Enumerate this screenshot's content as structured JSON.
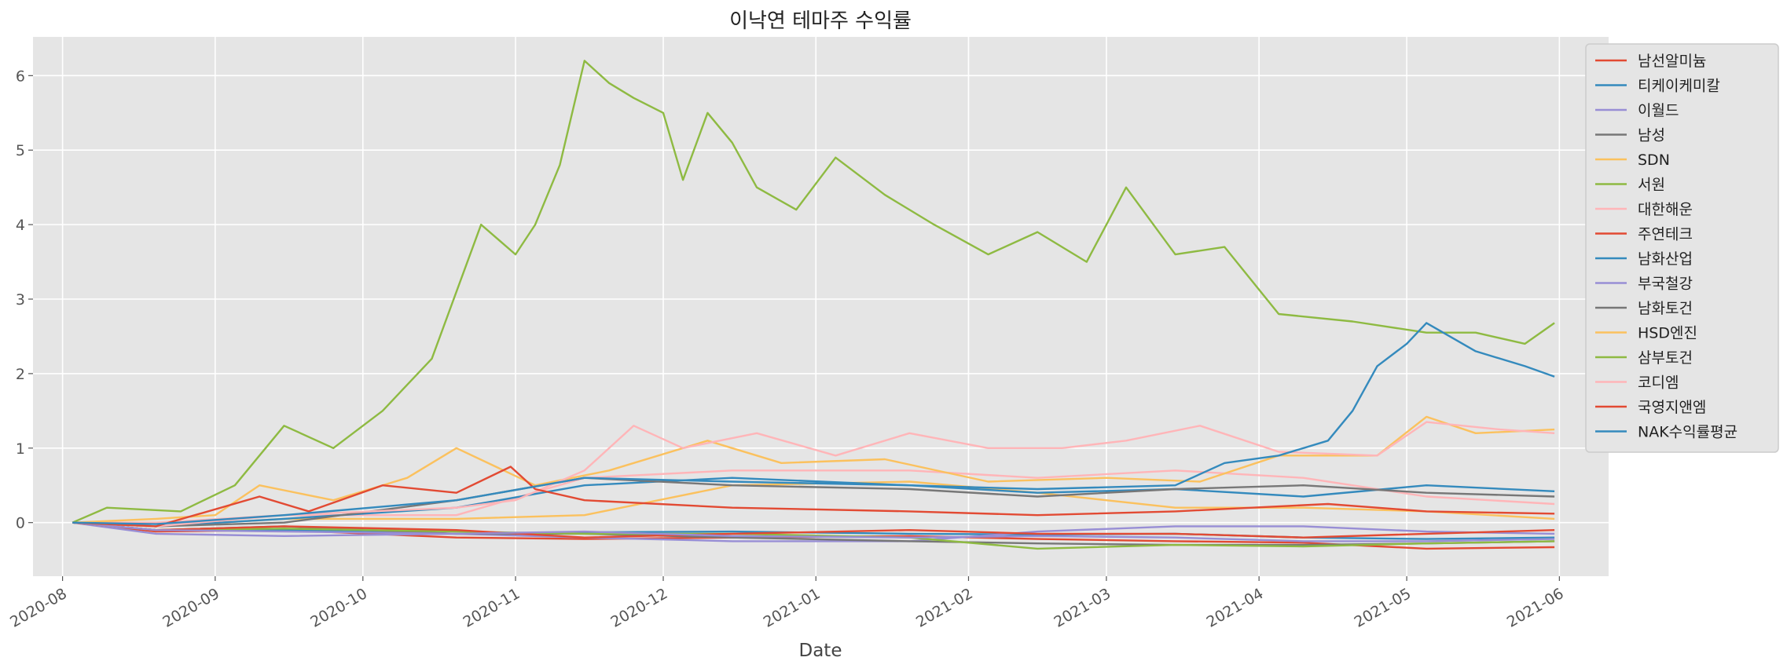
{
  "chart_data": {
    "type": "line",
    "title": "이낙연 테마주 수익률",
    "xlabel": "Date",
    "ylabel": "",
    "x_type": "date",
    "xlim": [
      "2020-07-26",
      "2021-06-11"
    ],
    "ylim": [
      -0.72,
      6.52
    ],
    "grid": true,
    "legend_position": "upper right, outside plot",
    "x_ticks": [
      {
        "date": "2020-08-01",
        "label": "2020-08"
      },
      {
        "date": "2020-09-01",
        "label": "2020-09"
      },
      {
        "date": "2020-10-01",
        "label": "2020-10"
      },
      {
        "date": "2020-11-01",
        "label": "2020-11"
      },
      {
        "date": "2020-12-01",
        "label": "2020-12"
      },
      {
        "date": "2021-01-01",
        "label": "2021-01"
      },
      {
        "date": "2021-02-01",
        "label": "2021-02"
      },
      {
        "date": "2021-03-01",
        "label": "2021-03"
      },
      {
        "date": "2021-04-01",
        "label": "2021-04"
      },
      {
        "date": "2021-05-01",
        "label": "2021-05"
      },
      {
        "date": "2021-06-01",
        "label": "2021-06"
      }
    ],
    "y_ticks": [
      0,
      1,
      2,
      3,
      4,
      5,
      6
    ],
    "series": [
      {
        "name": "남선알미늄",
        "color": "#E24A33",
        "x": [
          "2020-08-03",
          "2020-08-20",
          "2020-09-15",
          "2020-10-20",
          "2020-11-15",
          "2020-12-15",
          "2021-01-20",
          "2021-02-15",
          "2021-03-15",
          "2021-04-10",
          "2021-05-05",
          "2021-05-31"
        ],
        "y": [
          0,
          -0.12,
          -0.1,
          -0.2,
          -0.22,
          -0.2,
          -0.18,
          -0.22,
          -0.25,
          -0.27,
          -0.35,
          -0.33
        ]
      },
      {
        "name": "티케이케미칼",
        "color": "#348ABD",
        "x": [
          "2020-08-03",
          "2020-08-20",
          "2020-09-15",
          "2020-10-20",
          "2020-11-15",
          "2020-12-15",
          "2021-01-20",
          "2021-02-15",
          "2021-03-15",
          "2021-04-10",
          "2021-05-05",
          "2021-05-31"
        ],
        "y": [
          0,
          -0.1,
          -0.1,
          -0.15,
          -0.13,
          -0.12,
          -0.15,
          -0.16,
          -0.15,
          -0.2,
          -0.22,
          -0.2
        ]
      },
      {
        "name": "이월드",
        "color": "#988ED5",
        "x": [
          "2020-08-03",
          "2020-08-20",
          "2020-09-15",
          "2020-10-20",
          "2020-11-15",
          "2020-12-15",
          "2021-01-20",
          "2021-02-15",
          "2021-03-15",
          "2021-04-10",
          "2021-05-05",
          "2021-05-31"
        ],
        "y": [
          0,
          -0.15,
          -0.18,
          -0.15,
          -0.2,
          -0.25,
          -0.25,
          -0.12,
          -0.05,
          -0.05,
          -0.12,
          -0.15
        ]
      },
      {
        "name": "남성",
        "color": "#777777",
        "x": [
          "2020-08-03",
          "2020-08-20",
          "2020-09-15",
          "2020-10-20",
          "2020-11-15",
          "2020-12-15",
          "2021-01-20",
          "2021-02-15",
          "2021-03-15",
          "2021-04-10",
          "2021-05-05",
          "2021-05-31"
        ],
        "y": [
          0,
          -0.1,
          -0.05,
          -0.15,
          -0.15,
          -0.2,
          -0.25,
          -0.28,
          -0.3,
          -0.3,
          -0.28,
          -0.25
        ]
      },
      {
        "name": "SDN",
        "color": "#FBC15E",
        "x": [
          "2020-08-03",
          "2020-08-20",
          "2020-09-15",
          "2020-10-20",
          "2020-11-15",
          "2020-12-15",
          "2021-01-20",
          "2021-02-15",
          "2021-03-15",
          "2021-04-10",
          "2021-05-05",
          "2021-05-31"
        ],
        "y": [
          0,
          -0.05,
          0.05,
          0.05,
          0.1,
          0.5,
          0.55,
          0.4,
          0.2,
          0.2,
          0.15,
          0.05
        ]
      },
      {
        "name": "서원",
        "color": "#8EBA42",
        "x": [
          "2020-08-03",
          "2020-08-20",
          "2020-09-15",
          "2020-10-20",
          "2020-11-15",
          "2020-12-15",
          "2021-01-20",
          "2021-02-15",
          "2021-03-15",
          "2021-04-10",
          "2021-05-05",
          "2021-05-31"
        ],
        "y": [
          0,
          -0.1,
          -0.08,
          -0.12,
          -0.15,
          -0.15,
          -0.2,
          -0.35,
          -0.3,
          -0.32,
          -0.28,
          -0.25
        ]
      },
      {
        "name": "대한해운",
        "color": "#FFB5B8",
        "x": [
          "2020-08-03",
          "2020-08-20",
          "2020-09-15",
          "2020-10-20",
          "2020-11-15",
          "2020-12-15",
          "2021-01-20",
          "2021-02-15",
          "2021-03-15",
          "2021-04-10",
          "2021-05-05",
          "2021-05-31"
        ],
        "y": [
          0,
          0.0,
          0.1,
          0.1,
          0.6,
          0.7,
          0.7,
          0.6,
          0.7,
          0.6,
          0.35,
          0.25
        ]
      },
      {
        "name": "주연테크",
        "color": "#E24A33",
        "x": [
          "2020-08-03",
          "2020-08-20",
          "2020-09-15",
          "2020-10-20",
          "2020-11-15",
          "2020-12-15",
          "2021-01-20",
          "2021-02-15",
          "2021-03-15",
          "2021-04-10",
          "2021-05-05",
          "2021-05-31"
        ],
        "y": [
          0,
          -0.1,
          -0.05,
          -0.1,
          -0.2,
          -0.15,
          -0.1,
          -0.15,
          -0.15,
          -0.2,
          -0.15,
          -0.1
        ]
      },
      {
        "name": "남화산업",
        "color": "#348ABD",
        "x": [
          "2020-08-03",
          "2020-08-20",
          "2020-09-15",
          "2020-10-20",
          "2020-11-15",
          "2020-12-15",
          "2021-01-20",
          "2021-02-15",
          "2021-03-15",
          "2021-04-10",
          "2021-05-05",
          "2021-05-31"
        ],
        "y": [
          0,
          -0.05,
          0.05,
          0.2,
          0.5,
          0.6,
          0.5,
          0.4,
          0.45,
          0.35,
          0.5,
          0.42
        ]
      },
      {
        "name": "부국철강",
        "color": "#988ED5",
        "x": [
          "2020-08-03",
          "2020-08-20",
          "2020-09-15",
          "2020-10-20",
          "2020-11-15",
          "2020-12-15",
          "2021-01-20",
          "2021-02-15",
          "2021-03-15",
          "2021-04-10",
          "2021-05-05",
          "2021-05-31"
        ],
        "y": [
          0,
          -0.1,
          -0.12,
          -0.15,
          -0.12,
          -0.18,
          -0.2,
          -0.18,
          -0.2,
          -0.25,
          -0.25,
          -0.22
        ]
      },
      {
        "name": "남화토건",
        "color": "#777777",
        "x": [
          "2020-08-03",
          "2020-08-20",
          "2020-09-15",
          "2020-10-20",
          "2020-11-15",
          "2020-12-15",
          "2021-01-20",
          "2021-02-15",
          "2021-03-15",
          "2021-04-10",
          "2021-05-05",
          "2021-05-31"
        ],
        "y": [
          0,
          -0.05,
          0.0,
          0.3,
          0.6,
          0.5,
          0.45,
          0.35,
          0.45,
          0.5,
          0.4,
          0.35
        ]
      },
      {
        "name": "HSD엔진",
        "color": "#FBC15E",
        "x": [
          "2020-08-03",
          "2020-08-20",
          "2020-09-01",
          "2020-09-10",
          "2020-09-25",
          "2020-10-10",
          "2020-10-20",
          "2020-11-05",
          "2020-11-20",
          "2020-12-10",
          "2020-12-25",
          "2021-01-15",
          "2021-02-05",
          "2021-03-01",
          "2021-03-20",
          "2021-04-05",
          "2021-04-25",
          "2021-05-05",
          "2021-05-15",
          "2021-05-31"
        ],
        "y": [
          0,
          0.05,
          0.1,
          0.5,
          0.3,
          0.6,
          1.0,
          0.5,
          0.7,
          1.1,
          0.8,
          0.85,
          0.55,
          0.6,
          0.55,
          0.9,
          0.9,
          1.42,
          1.2,
          1.25
        ]
      },
      {
        "name": "삼부토건",
        "color": "#8EBA42",
        "x": [
          "2020-08-03",
          "2020-08-10",
          "2020-08-25",
          "2020-09-05",
          "2020-09-15",
          "2020-09-25",
          "2020-10-05",
          "2020-10-15",
          "2020-10-25",
          "2020-11-01",
          "2020-11-05",
          "2020-11-10",
          "2020-11-15",
          "2020-11-20",
          "2020-11-25",
          "2020-12-01",
          "2020-12-05",
          "2020-12-10",
          "2020-12-15",
          "2020-12-20",
          "2020-12-28",
          "2021-01-05",
          "2021-01-15",
          "2021-01-25",
          "2021-02-05",
          "2021-02-15",
          "2021-02-25",
          "2021-03-05",
          "2021-03-15",
          "2021-03-25",
          "2021-04-05",
          "2021-04-20",
          "2021-05-05",
          "2021-05-15",
          "2021-05-25",
          "2021-05-31"
        ],
        "y": [
          0,
          0.2,
          0.15,
          0.5,
          1.3,
          1.0,
          1.5,
          2.2,
          4.0,
          3.6,
          4.0,
          4.8,
          6.2,
          5.9,
          5.7,
          5.5,
          4.6,
          5.5,
          5.1,
          4.5,
          4.2,
          4.9,
          4.4,
          4.0,
          3.6,
          3.9,
          3.5,
          4.5,
          3.6,
          3.7,
          2.8,
          2.7,
          2.55,
          2.55,
          2.4,
          2.68
        ]
      },
      {
        "name": "코디엠",
        "color": "#FFB5B8",
        "x": [
          "2020-08-03",
          "2020-08-20",
          "2020-09-15",
          "2020-10-20",
          "2020-11-01",
          "2020-11-15",
          "2020-11-25",
          "2020-12-05",
          "2020-12-20",
          "2021-01-05",
          "2021-01-20",
          "2021-02-05",
          "2021-02-20",
          "2021-03-05",
          "2021-03-20",
          "2021-04-05",
          "2021-04-25",
          "2021-05-05",
          "2021-05-20",
          "2021-05-31"
        ],
        "y": [
          0,
          -0.05,
          0.1,
          0.2,
          0.3,
          0.7,
          1.3,
          1.0,
          1.2,
          0.9,
          1.2,
          1.0,
          1.0,
          1.1,
          1.3,
          0.95,
          0.9,
          1.35,
          1.25,
          1.2
        ]
      },
      {
        "name": "국영지앤엠",
        "color": "#E24A33",
        "x": [
          "2020-08-03",
          "2020-08-20",
          "2020-09-10",
          "2020-09-20",
          "2020-10-05",
          "2020-10-20",
          "2020-10-31",
          "2020-11-05",
          "2020-11-15",
          "2020-12-15",
          "2021-01-20",
          "2021-02-15",
          "2021-03-15",
          "2021-04-15",
          "2021-05-05",
          "2021-05-31"
        ],
        "y": [
          0,
          -0.05,
          0.35,
          0.15,
          0.5,
          0.4,
          0.75,
          0.45,
          0.3,
          0.2,
          0.15,
          0.1,
          0.15,
          0.25,
          0.15,
          0.12
        ]
      },
      {
        "name": "NAK수익률평균",
        "color": "#348ABD",
        "x": [
          "2020-08-03",
          "2020-08-20",
          "2020-09-15",
          "2020-10-20",
          "2020-11-15",
          "2020-12-15",
          "2021-01-20",
          "2021-02-15",
          "2021-03-15",
          "2021-03-25",
          "2021-04-05",
          "2021-04-15",
          "2021-04-20",
          "2021-04-25",
          "2021-05-01",
          "2021-05-05",
          "2021-05-15",
          "2021-05-25",
          "2021-05-31"
        ],
        "y": [
          0,
          -0.02,
          0.1,
          0.3,
          0.6,
          0.55,
          0.5,
          0.45,
          0.5,
          0.8,
          0.9,
          1.1,
          1.5,
          2.1,
          2.4,
          2.68,
          2.3,
          2.1,
          1.96
        ]
      }
    ]
  }
}
